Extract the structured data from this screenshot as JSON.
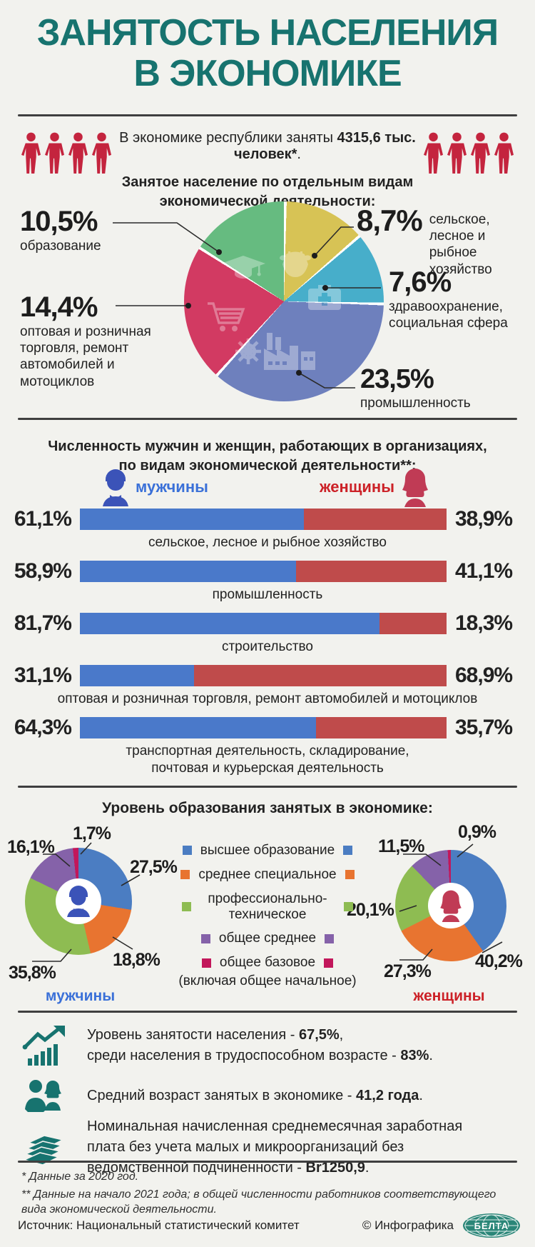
{
  "colors": {
    "bg": "#f2f2ee",
    "ink": "#222222",
    "teal": "#17736f",
    "divider": "#3f3f3f",
    "people-red": "#c4243e",
    "bar-male": "#4a79ca",
    "bar-female": "#bf4b4b",
    "male-blue": "#3b53b8",
    "male-text": "#3a70d8",
    "female-red": "#c03b55",
    "female-text": "#cc2127",
    "pie-agr": "#d7c355",
    "pie-health": "#47aeca",
    "pie-ind": "#6e80bd",
    "pie-trade": "#d23a62",
    "pie-edu": "#66bb80"
  },
  "header": {
    "line1": "ЗАНЯТОСТЬ НАСЕЛЕНИЯ",
    "line2": "В ЭКОНОМИКЕ"
  },
  "intro": {
    "pre": "В экономике республики заняты ",
    "bold": "4315,6 тыс. человек*",
    "post": "."
  },
  "section1": {
    "heading1": "Занятое население по отдельным видам",
    "heading2": "экономической деятельности:"
  },
  "section2": {
    "heading1": "Численность мужчин и женщин, работающих в организациях,",
    "heading2": "по видам экономической деятельности**:"
  },
  "section3": {
    "heading": "Уровень образования занятых в экономике:"
  },
  "chart_data": [
    {
      "type": "pie",
      "title": "Занятое население по отдельным видам экономической деятельности:",
      "unit": "%",
      "start": "12 o'clock, clockwise",
      "slices": [
        {
          "label": "сельское, лесное и рыбное хозяйство",
          "value": 8.7,
          "display": "8,7%",
          "color": "#d7c355",
          "icon": "cow-icon"
        },
        {
          "label": "здравоохранение, социальная сфера",
          "value": 7.6,
          "display": "7,6%",
          "color": "#47aeca",
          "icon": "medical-bag-icon"
        },
        {
          "label": "промышленность",
          "value": 23.5,
          "display": "23,5%",
          "color": "#6e80bd",
          "icon": "factory-icon"
        },
        {
          "label": "оптовая и розничная торговля, ремонт автомобилей и мотоциклов",
          "value": 14.4,
          "display": "14,4%",
          "color": "#d23a62",
          "icon": "shopping-cart-icon"
        },
        {
          "label": "образование",
          "value": 10.5,
          "display": "10,5%",
          "color": "#66bb80",
          "icon": "graduation-cap-icon"
        }
      ]
    },
    {
      "type": "bar",
      "orientation": "horizontal-paired-100%",
      "title": "Численность мужчин и женщин, работающих в организациях, по видам экономической деятельности**:",
      "series": [
        "мужчины",
        "женщины"
      ],
      "series_colors": [
        "#4a79ca",
        "#bf4b4b"
      ],
      "rows": [
        {
          "category": "сельское, лесное и рыбное хозяйство",
          "male": 61.1,
          "female": 38.9,
          "male_display": "61,1%",
          "female_display": "38,9%"
        },
        {
          "category": "промышленность",
          "male": 58.9,
          "female": 41.1,
          "male_display": "58,9%",
          "female_display": "41,1%"
        },
        {
          "category": "строительство",
          "male": 81.7,
          "female": 18.3,
          "male_display": "81,7%",
          "female_display": "18,3%"
        },
        {
          "category": "оптовая и розничная торговля, ремонт автомобилей и мотоциклов",
          "male": 31.1,
          "female": 68.9,
          "male_display": "31,1%",
          "female_display": "68,9%"
        },
        {
          "category": "транспортная деятельность, складирование, почтовая и курьерская деятельность",
          "male": 64.3,
          "female": 35.7,
          "male_display": "64,3%",
          "female_display": "35,7%"
        }
      ]
    },
    {
      "type": "pie",
      "variant": "donut-pair",
      "title": "Уровень образования занятых в экономике:",
      "unit": "%",
      "legend": [
        {
          "label": "высшее образование",
          "color": "#4b7dc2"
        },
        {
          "label": "среднее специальное",
          "color": "#e87430"
        },
        {
          "label": "профессионально-техническое",
          "color": "#8ebc52"
        },
        {
          "label": "общее среднее",
          "color": "#8562a9"
        },
        {
          "label": "общее базовое",
          "sublabel": "(включая общее начальное)",
          "color": "#c2175b"
        }
      ],
      "men": {
        "label": "мужчины",
        "slices": [
          {
            "label": "высшее образование",
            "value": 27.5,
            "display": "27,5%",
            "color": "#4b7dc2"
          },
          {
            "label": "среднее специальное",
            "value": 18.8,
            "display": "18,8%",
            "color": "#e87430"
          },
          {
            "label": "профессионально-техническое",
            "value": 35.8,
            "display": "35,8%",
            "color": "#8ebc52"
          },
          {
            "label": "общее среднее",
            "value": 16.1,
            "display": "16,1%",
            "color": "#8562a9"
          },
          {
            "label": "общее базовое (включая общее начальное)",
            "value": 1.7,
            "display": "1,7%",
            "color": "#c2175b"
          }
        ]
      },
      "women": {
        "label": "женщины",
        "slices": [
          {
            "label": "высшее образование",
            "value": 40.2,
            "display": "40,2%",
            "color": "#4b7dc2"
          },
          {
            "label": "среднее специальное",
            "value": 27.3,
            "display": "27,3%",
            "color": "#e87430"
          },
          {
            "label": "профессионально-техническое",
            "value": 20.1,
            "display": "20,1%",
            "color": "#8ebc52"
          },
          {
            "label": "общее среднее",
            "value": 11.5,
            "display": "11,5%",
            "color": "#8562a9"
          },
          {
            "label": "общее базовое (включая общее начальное)",
            "value": 0.9,
            "display": "0,9%",
            "color": "#c2175b"
          }
        ]
      }
    }
  ],
  "stats": {
    "items": [
      {
        "icon": "growth-chart-icon",
        "line1_pre": "Уровень занятости населения - ",
        "line1_bold": "67,5%",
        "line1_post": ",",
        "line2_pre": "среди населения в трудоспособном возрасте - ",
        "line2_bold": "83%",
        "line2_post": "."
      },
      {
        "icon": "people-pair-icon",
        "line1_pre": "Средний возраст занятых в экономике - ",
        "line1_bold": "41,2 года",
        "line1_post": "."
      },
      {
        "icon": "money-icon",
        "line1_pre": "Номинальная начисленная среднемесячная заработная плата без учета малых и микроорганизаций без ведомственной подчиненности - ",
        "line1_bold": "Br1250,9",
        "line1_post": "."
      }
    ]
  },
  "footnotes": {
    "line1": "* Данные за 2020 год.",
    "line2": "** Данные на начало 2021 года; в общей численности работников соответствующего вида экономической деятельности."
  },
  "footer": {
    "source": "Источник: Национальный статистический комитет",
    "copyright": "© Инфографика",
    "logo": "БЕЛТА"
  }
}
